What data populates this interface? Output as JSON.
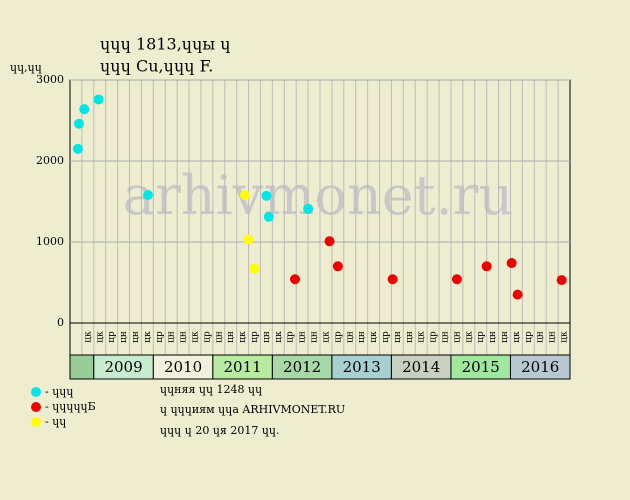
{
  "chart_data": {
    "type": "scatter",
    "title": "ɥɥɥ 1813,ɥɥы ɥ",
    "subtitle": "ɥɥɥ Cu,ɥɥɥ F.",
    "y_label": "ɥɥ,ɥɥ",
    "watermark": "arhivmonet.ru",
    "ylim": [
      0,
      3000
    ],
    "yticks": [
      0,
      1000,
      2000,
      3000
    ],
    "grid": true,
    "xlim": [
      0,
      42
    ],
    "years": [
      "2009",
      "2010",
      "2011",
      "2012",
      "2013",
      "2014",
      "2015",
      "2016"
    ],
    "column_labels": [
      null,
      "цк",
      "цк",
      "цр",
      "цн",
      "цн",
      "цк",
      "цр",
      "цн",
      "цн",
      "цк",
      "цр",
      "цн",
      "цн",
      "цк",
      "цр",
      "цн",
      "цк",
      "цр",
      "цн",
      "цн",
      "цк",
      "цр",
      "цн",
      "цн",
      "цк",
      "цр",
      "цн",
      "цн",
      "цк",
      "цр",
      "цн",
      "цн",
      "цк",
      "цр",
      "цн",
      "цн",
      "цк",
      "цр",
      "цн",
      "цн",
      "цк"
    ],
    "series": [
      {
        "name": "- ɥɥɥ",
        "color": "#00e5e5",
        "x": [
          0.67,
          0.75,
          1.2,
          2.4,
          6.55,
          16.5,
          16.7,
          20.0
        ],
        "values": [
          2150,
          2460,
          2640,
          2760,
          1580,
          1570,
          1310,
          1410
        ]
      },
      {
        "name": "- ɥɥɥɥɥБ",
        "color": "#ee0000",
        "x": [
          18.9,
          21.8,
          22.5,
          27.1,
          32.5,
          35.0,
          37.1,
          37.6,
          41.3
        ],
        "values": [
          540,
          1010,
          700,
          540,
          540,
          700,
          740,
          350,
          530
        ]
      },
      {
        "name": "- ɥɥ",
        "color": "#ffff00",
        "x": [
          14.7,
          15.0,
          15.5
        ],
        "values": [
          1580,
          1030,
          670
        ]
      }
    ],
    "notes": [
      "ɥɥняя ɥɥ 1248 ɥɥ",
      "ɥ ɥɥɥиям ɥɥа ARHIVMONET.RU",
      "ɥɥɥ ɥ 20 ɥя 2017 ɥɥ."
    ]
  }
}
